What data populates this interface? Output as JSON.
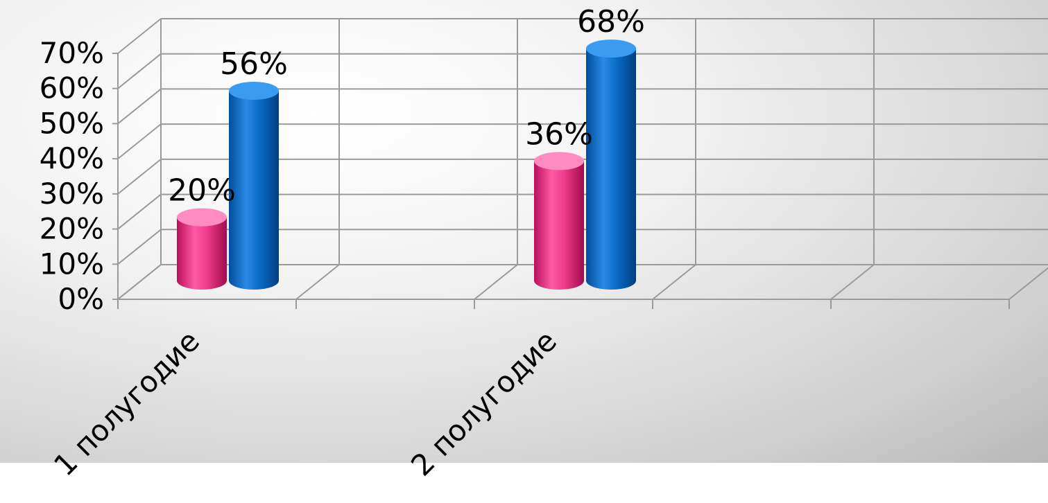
{
  "chart_data": {
    "type": "bar",
    "categories": [
      "1 полугодие",
      "2 полугодие"
    ],
    "series": [
      {
        "values": [
          20,
          36
        ],
        "data_labels": [
          "20%",
          "36%"
        ],
        "color": "#f03c8c"
      },
      {
        "values": [
          56,
          68
        ],
        "data_labels": [
          "56%",
          "68%"
        ],
        "color": "#0a6cc8"
      }
    ],
    "ylim": [
      0,
      70
    ],
    "y_ticks": [
      "0%",
      "10%",
      "20%",
      "30%",
      "40%",
      "50%",
      "60%",
      "70%"
    ],
    "grid": true,
    "style": "3d-cylinder"
  }
}
